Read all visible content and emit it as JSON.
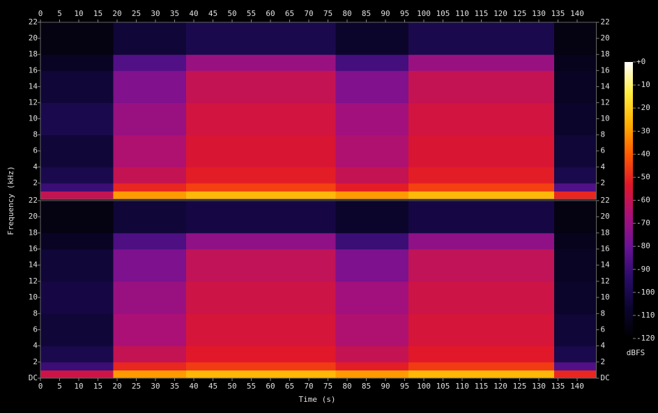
{
  "chart_data": {
    "type": "spectrogram",
    "xlabel": "Time (s)",
    "ylabel": "Frequency (kHz)",
    "colorbar_label": "dBFS",
    "xlim": [
      0,
      145
    ],
    "xticks": [
      0,
      5,
      10,
      15,
      20,
      25,
      30,
      35,
      40,
      45,
      50,
      55,
      60,
      65,
      70,
      75,
      80,
      85,
      90,
      95,
      100,
      105,
      110,
      115,
      120,
      125,
      130,
      135,
      140
    ],
    "zlim": [
      -120,
      0
    ],
    "zticks": [
      {
        "value": 0,
        "label": "+0"
      },
      -10,
      -20,
      -30,
      -40,
      -50,
      -60,
      -70,
      -80,
      -90,
      -100,
      -110,
      -120
    ],
    "colormap": [
      "#000000",
      "#0c0530",
      "#2a0c6a",
      "#6a1296",
      "#a8107a",
      "#e0162a",
      "#ff5a00",
      "#ffb000",
      "#ffee40",
      "#ffffff"
    ],
    "time_edges": [
      0,
      19,
      38,
      77,
      96,
      134,
      145
    ],
    "freq_edges": [
      0,
      1,
      2,
      4,
      8,
      12,
      16,
      18,
      22
    ],
    "channels": [
      {
        "ylim": [
          0,
          22
        ],
        "yticks": [
          2,
          4,
          6,
          8,
          10,
          12,
          14,
          16,
          18,
          20,
          22
        ],
        "values": [
          [
            -60,
            -90,
            -100,
            -105,
            -100,
            -105,
            -110,
            -115
          ],
          [
            -30,
            -50,
            -60,
            -65,
            -70,
            -75,
            -85,
            -105
          ],
          [
            -25,
            -45,
            -52,
            -55,
            -57,
            -60,
            -70,
            -100
          ],
          [
            -30,
            -52,
            -60,
            -65,
            -68,
            -75,
            -88,
            -108
          ],
          [
            -25,
            -45,
            -52,
            -55,
            -57,
            -60,
            -70,
            -100
          ],
          [
            -50,
            -85,
            -100,
            -105,
            -108,
            -110,
            -112,
            -115
          ]
        ]
      },
      {
        "ylim": [
          0,
          22
        ],
        "yticks": [
          {
            "value": 0,
            "label": "DC"
          },
          2,
          4,
          6,
          8,
          10,
          12,
          14,
          16,
          18,
          20,
          22
        ],
        "values": [
          [
            -58,
            -90,
            -100,
            -105,
            -102,
            -105,
            -110,
            -115
          ],
          [
            -30,
            -50,
            -60,
            -66,
            -70,
            -76,
            -86,
            -105
          ],
          [
            -25,
            -46,
            -53,
            -56,
            -58,
            -61,
            -72,
            -102
          ],
          [
            -30,
            -52,
            -60,
            -65,
            -68,
            -76,
            -90,
            -108
          ],
          [
            -25,
            -46,
            -53,
            -56,
            -58,
            -61,
            -72,
            -102
          ],
          [
            -50,
            -85,
            -100,
            -105,
            -108,
            -110,
            -112,
            -115
          ]
        ]
      }
    ]
  }
}
